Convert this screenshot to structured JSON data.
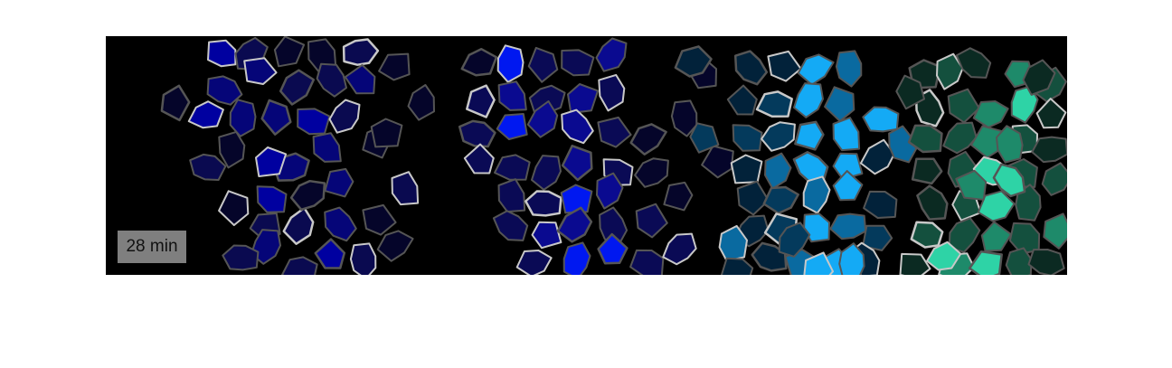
{
  "timestamp_label": "28 min",
  "colors": {
    "background": "#000000",
    "badge": "#7f7f7f",
    "badge_text": "#111111",
    "outline_dark": "#555555",
    "outline_light": "#c8c8c8",
    "panel1_palette": [
      "#05052a",
      "#0a0a50",
      "#050578",
      "#0000a0"
    ],
    "panel2_palette": [
      "#05052a",
      "#0a0a55",
      "#0a0a90",
      "#0018f0"
    ],
    "panel3_palette": [
      "#02223a",
      "#043a5c",
      "#0a6aa0",
      "#14aaf5"
    ],
    "panel4_palette": [
      "#0b2a22",
      "#14503e",
      "#1e8a6a",
      "#2ed3a6"
    ]
  },
  "image_description_name": "four-panel-fluorescence-cell-montage"
}
